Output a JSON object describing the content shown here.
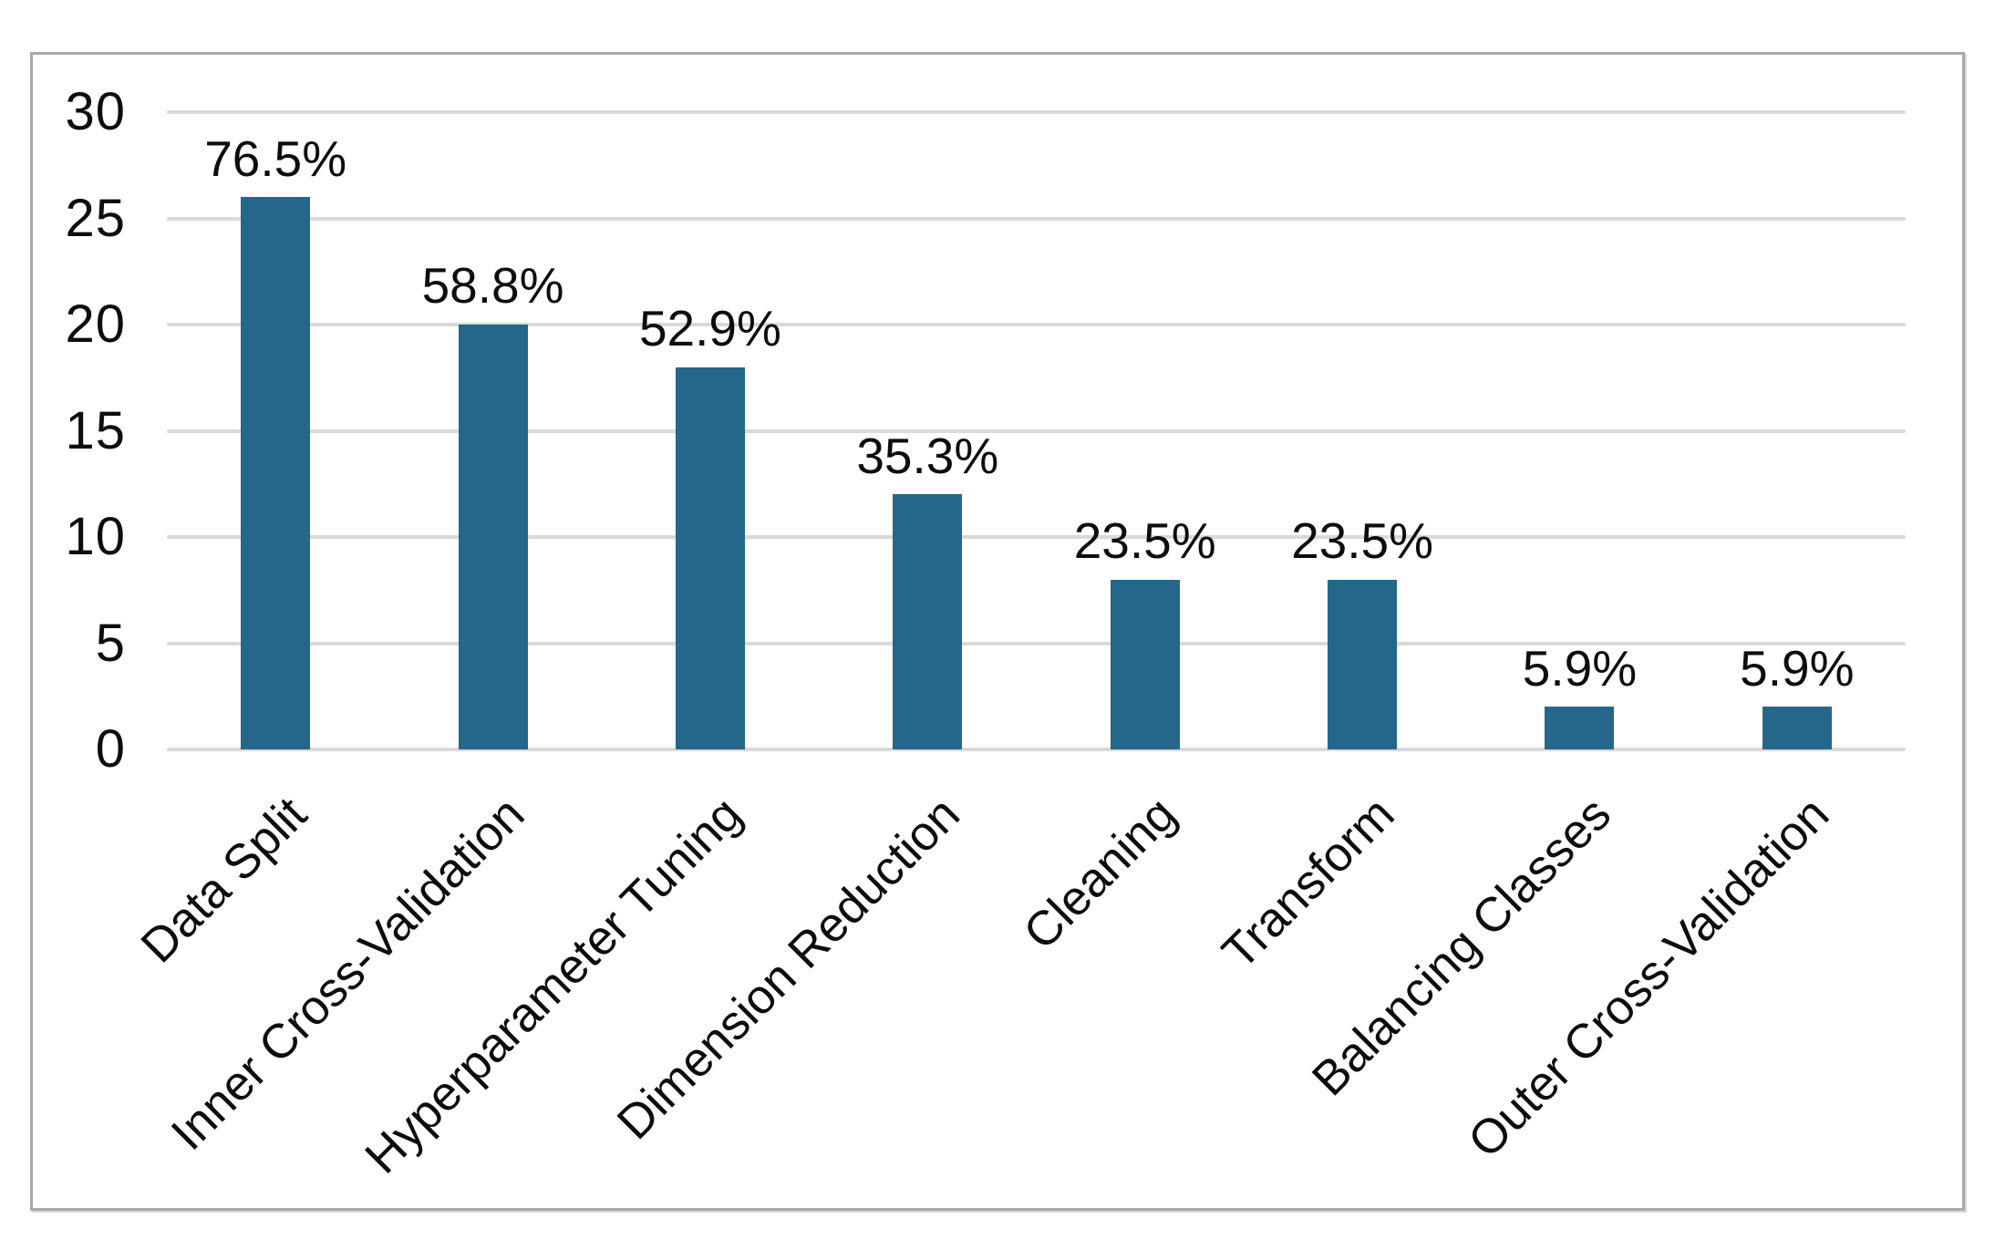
{
  "chart_data": {
    "type": "bar",
    "categories": [
      "Data Split",
      "Inner Cross-Validation",
      "Hyperparameter Tuning",
      "Dimension Reduction",
      "Cleaning",
      "Transform",
      "Balancing Classes",
      "Outer Cross-Validation"
    ],
    "values": [
      26,
      20,
      18,
      12,
      8,
      8,
      2,
      2
    ],
    "bar_labels": [
      "76.5%",
      "58.8%",
      "52.9%",
      "35.3%",
      "23.5%",
      "23.5%",
      "5.9%",
      "5.9%"
    ],
    "title": "",
    "xlabel": "",
    "ylabel": "",
    "ylim": [
      0,
      30
    ],
    "yticks": [
      0,
      5,
      10,
      15,
      20,
      25,
      30
    ],
    "grid": true,
    "legend": "none",
    "colors": {
      "bar": "#24678A",
      "gridline": "#D9D9D9",
      "panel_border": "#A8A8A8",
      "text": "#0D0D0D"
    }
  }
}
